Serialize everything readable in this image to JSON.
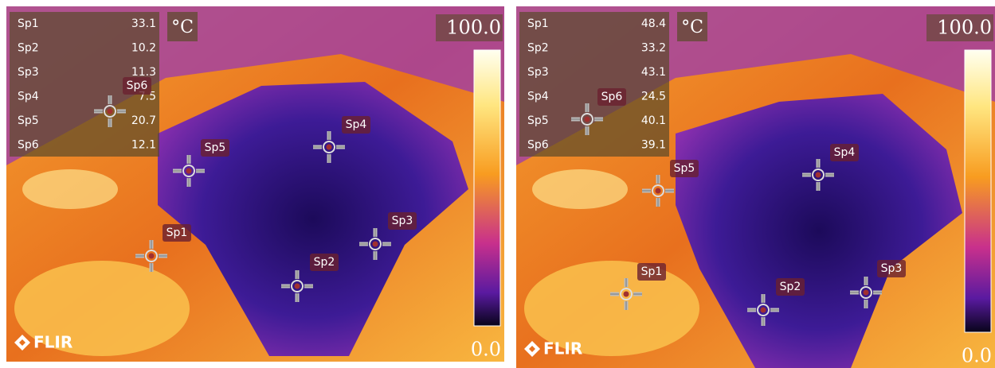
{
  "panels": [
    {
      "spots": [
        {
          "label": "Sp1",
          "value": "33.1"
        },
        {
          "label": "Sp2",
          "value": "10.2"
        },
        {
          "label": "Sp3",
          "value": "11.3"
        },
        {
          "label": "Sp4",
          "value": "7.5"
        },
        {
          "label": "Sp5",
          "value": "20.7"
        },
        {
          "label": "Sp6",
          "value": "12.1"
        }
      ],
      "unit": "°C",
      "scale_max": "100.0",
      "scale_min": "0.0",
      "logo": "FLIR"
    },
    {
      "spots": [
        {
          "label": "Sp1",
          "value": "48.4"
        },
        {
          "label": "Sp2",
          "value": "33.2"
        },
        {
          "label": "Sp3",
          "value": "43.1"
        },
        {
          "label": "Sp4",
          "value": "24.5"
        },
        {
          "label": "Sp5",
          "value": "40.1"
        },
        {
          "label": "Sp6",
          "value": "39.1"
        }
      ],
      "unit": "°C",
      "scale_max": "100.0",
      "scale_min": "0.0",
      "logo": "FLIR"
    }
  ]
}
